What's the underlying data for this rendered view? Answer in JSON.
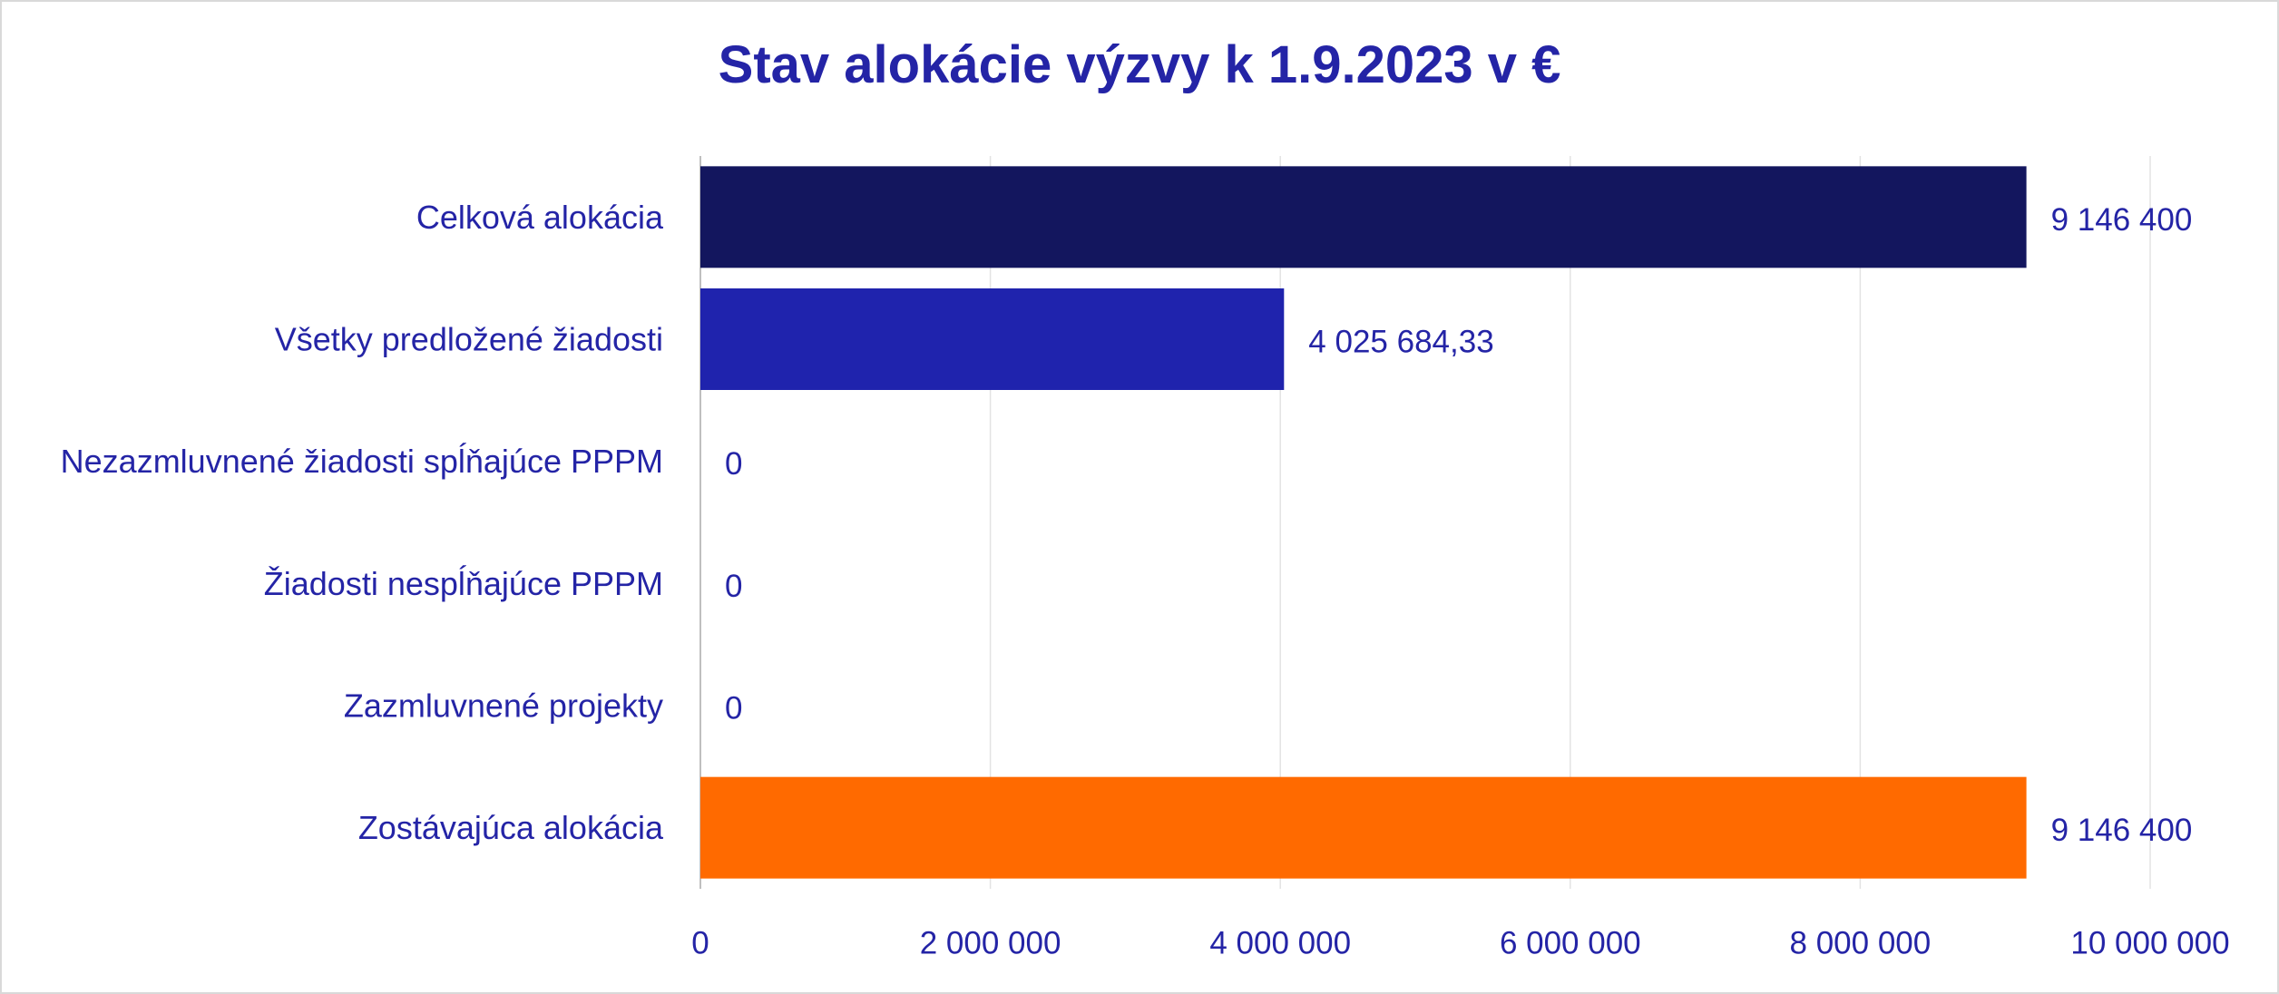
{
  "chart_data": {
    "type": "bar",
    "orientation": "horizontal",
    "title": "Stav alokácie výzvy k 1.9.2023 v €",
    "categories": [
      "Celková alokácia",
      "Všetky predložené žiadosti",
      "Nezazmluvnené žiadosti spĺňajúce PPPM",
      "Žiadosti nespĺňajúce PPPM",
      "Zazmluvnené projekty",
      "Zostávajúca alokácia"
    ],
    "values": [
      9146400,
      4025684.33,
      0,
      0,
      0,
      9146400
    ],
    "data_labels": [
      "9 146 400",
      "4 025 684,33",
      "0",
      "0",
      "0",
      "9 146 400"
    ],
    "colors": [
      "#13165e",
      "#1f23ad",
      "#1f23ad",
      "#1f23ad",
      "#1f23ad",
      "#ff6a00"
    ],
    "xlim": [
      0,
      10000000
    ],
    "xticks": [
      0,
      2000000,
      4000000,
      6000000,
      8000000,
      10000000
    ],
    "xtick_labels": [
      "0",
      "2 000 000",
      "4 000 000",
      "6 000 000",
      "8 000 000",
      "10 000 000"
    ],
    "grid": "vertical",
    "legend": "none",
    "text_color": "#2424a6"
  }
}
